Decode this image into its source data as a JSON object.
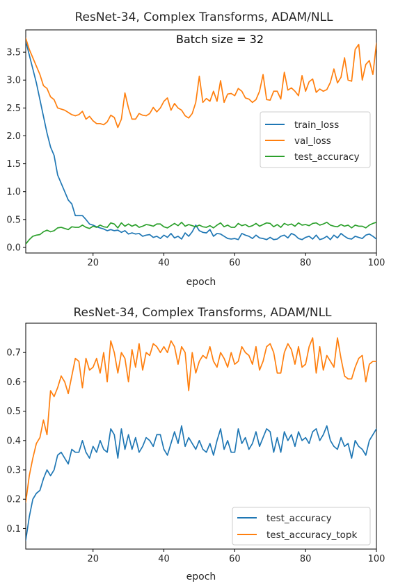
{
  "chart_data": [
    {
      "type": "line",
      "title": "ResNet-34, Complex Transforms, ADAM/NLL",
      "annotation": "Batch size = 32",
      "xlabel": "epoch",
      "ylabel": "",
      "xlim": [
        1,
        100
      ],
      "ylim": [
        -0.1,
        3.9
      ],
      "xticks": [
        20,
        40,
        60,
        80,
        100
      ],
      "yticks": [
        0.0,
        0.5,
        1.0,
        1.5,
        2.0,
        2.5,
        3.0,
        3.5
      ],
      "ytick_labels": [
        "0.0",
        "0.5",
        "1.0",
        "1.5",
        "2.0",
        "2.5",
        "3.0",
        "3.5"
      ],
      "grid": false,
      "legend_position": "center-right",
      "series": [
        {
          "name": "train_loss",
          "color": "#1f77b4",
          "values": [
            3.7,
            3.45,
            3.2,
            2.95,
            2.65,
            2.35,
            2.05,
            1.8,
            1.65,
            1.3,
            1.15,
            1.0,
            0.85,
            0.78,
            0.57,
            0.57,
            0.57,
            0.5,
            0.42,
            0.4,
            0.37,
            0.35,
            0.33,
            0.3,
            0.32,
            0.3,
            0.31,
            0.27,
            0.3,
            0.24,
            0.26,
            0.24,
            0.25,
            0.2,
            0.22,
            0.23,
            0.18,
            0.2,
            0.16,
            0.22,
            0.18,
            0.25,
            0.17,
            0.2,
            0.15,
            0.26,
            0.2,
            0.28,
            0.4,
            0.3,
            0.27,
            0.26,
            0.32,
            0.2,
            0.25,
            0.24,
            0.2,
            0.16,
            0.15,
            0.16,
            0.14,
            0.25,
            0.22,
            0.2,
            0.16,
            0.22,
            0.17,
            0.16,
            0.14,
            0.18,
            0.14,
            0.15,
            0.2,
            0.22,
            0.17,
            0.25,
            0.22,
            0.16,
            0.14,
            0.18,
            0.2,
            0.15,
            0.22,
            0.14,
            0.16,
            0.2,
            0.14,
            0.22,
            0.17,
            0.25,
            0.2,
            0.16,
            0.15,
            0.2,
            0.18,
            0.16,
            0.22,
            0.24,
            0.2,
            0.15
          ]
        },
        {
          "name": "val_loss",
          "color": "#ff7f0e",
          "values": [
            3.75,
            3.55,
            3.4,
            3.25,
            3.1,
            2.9,
            2.85,
            2.7,
            2.65,
            2.5,
            2.48,
            2.46,
            2.42,
            2.38,
            2.36,
            2.38,
            2.44,
            2.3,
            2.35,
            2.27,
            2.22,
            2.22,
            2.2,
            2.25,
            2.37,
            2.33,
            2.15,
            2.3,
            2.77,
            2.5,
            2.3,
            2.3,
            2.4,
            2.37,
            2.36,
            2.4,
            2.51,
            2.43,
            2.5,
            2.62,
            2.68,
            2.46,
            2.58,
            2.5,
            2.46,
            2.36,
            2.32,
            2.4,
            2.6,
            3.07,
            2.6,
            2.67,
            2.62,
            2.8,
            2.62,
            2.99,
            2.6,
            2.75,
            2.76,
            2.72,
            2.85,
            2.8,
            2.68,
            2.66,
            2.6,
            2.65,
            2.8,
            3.1,
            2.65,
            2.64,
            2.8,
            2.8,
            2.66,
            3.14,
            2.82,
            2.86,
            2.8,
            2.72,
            3.08,
            2.8,
            2.97,
            3.02,
            2.78,
            2.84,
            2.8,
            2.83,
            2.96,
            3.2,
            2.95,
            3.05,
            3.4,
            3.0,
            2.98,
            3.55,
            3.64,
            3.0,
            3.28,
            3.35,
            3.1,
            3.66
          ]
        },
        {
          "name": "test_accuracy",
          "color": "#2ca02c",
          "values": [
            0.06,
            0.14,
            0.2,
            0.22,
            0.23,
            0.28,
            0.31,
            0.28,
            0.3,
            0.35,
            0.36,
            0.34,
            0.32,
            0.37,
            0.36,
            0.36,
            0.4,
            0.36,
            0.34,
            0.38,
            0.36,
            0.4,
            0.37,
            0.36,
            0.44,
            0.42,
            0.35,
            0.44,
            0.38,
            0.42,
            0.38,
            0.41,
            0.36,
            0.38,
            0.41,
            0.4,
            0.38,
            0.42,
            0.42,
            0.37,
            0.35,
            0.39,
            0.43,
            0.39,
            0.45,
            0.38,
            0.41,
            0.39,
            0.37,
            0.4,
            0.37,
            0.36,
            0.39,
            0.35,
            0.4,
            0.44,
            0.37,
            0.4,
            0.36,
            0.36,
            0.43,
            0.39,
            0.41,
            0.37,
            0.39,
            0.43,
            0.38,
            0.41,
            0.44,
            0.43,
            0.37,
            0.41,
            0.36,
            0.43,
            0.4,
            0.42,
            0.38,
            0.44,
            0.4,
            0.41,
            0.39,
            0.43,
            0.44,
            0.4,
            0.42,
            0.45,
            0.4,
            0.38,
            0.37,
            0.41,
            0.38,
            0.4,
            0.35,
            0.4,
            0.38,
            0.38,
            0.35,
            0.4,
            0.43,
            0.45
          ]
        }
      ]
    },
    {
      "type": "line",
      "title": "ResNet-34, Complex Transforms, ADAM/NLL",
      "xlabel": "epoch",
      "ylabel": "",
      "xlim": [
        1,
        100
      ],
      "ylim": [
        0.03,
        0.8
      ],
      "xticks": [
        20,
        40,
        60,
        80,
        100
      ],
      "yticks": [
        0.1,
        0.2,
        0.3,
        0.4,
        0.5,
        0.6,
        0.7
      ],
      "ytick_labels": [
        "0.1",
        "0.2",
        "0.3",
        "0.4",
        "0.5",
        "0.6",
        "0.7"
      ],
      "grid": false,
      "legend_position": "lower-right",
      "series": [
        {
          "name": "test_accuracy",
          "color": "#1f77b4",
          "values": [
            0.06,
            0.14,
            0.2,
            0.22,
            0.23,
            0.27,
            0.3,
            0.28,
            0.3,
            0.35,
            0.36,
            0.34,
            0.32,
            0.37,
            0.36,
            0.36,
            0.4,
            0.36,
            0.34,
            0.38,
            0.36,
            0.4,
            0.37,
            0.36,
            0.44,
            0.42,
            0.34,
            0.44,
            0.37,
            0.42,
            0.37,
            0.41,
            0.36,
            0.38,
            0.41,
            0.4,
            0.38,
            0.42,
            0.42,
            0.37,
            0.35,
            0.39,
            0.43,
            0.39,
            0.45,
            0.38,
            0.41,
            0.39,
            0.37,
            0.4,
            0.37,
            0.36,
            0.39,
            0.35,
            0.4,
            0.44,
            0.37,
            0.4,
            0.36,
            0.36,
            0.44,
            0.39,
            0.41,
            0.37,
            0.39,
            0.43,
            0.38,
            0.41,
            0.44,
            0.43,
            0.36,
            0.41,
            0.36,
            0.43,
            0.4,
            0.42,
            0.38,
            0.43,
            0.4,
            0.41,
            0.39,
            0.43,
            0.44,
            0.4,
            0.42,
            0.45,
            0.4,
            0.38,
            0.37,
            0.41,
            0.38,
            0.39,
            0.34,
            0.4,
            0.38,
            0.37,
            0.35,
            0.4,
            0.42,
            0.44
          ]
        },
        {
          "name": "test_accuracy_topk",
          "color": "#ff7f0e",
          "values": [
            0.19,
            0.28,
            0.34,
            0.39,
            0.41,
            0.47,
            0.42,
            0.57,
            0.55,
            0.58,
            0.62,
            0.6,
            0.56,
            0.62,
            0.68,
            0.67,
            0.58,
            0.68,
            0.64,
            0.65,
            0.68,
            0.63,
            0.7,
            0.6,
            0.74,
            0.7,
            0.63,
            0.7,
            0.68,
            0.6,
            0.71,
            0.65,
            0.73,
            0.64,
            0.7,
            0.69,
            0.73,
            0.72,
            0.7,
            0.72,
            0.7,
            0.74,
            0.72,
            0.66,
            0.72,
            0.7,
            0.57,
            0.7,
            0.63,
            0.67,
            0.69,
            0.68,
            0.72,
            0.67,
            0.65,
            0.7,
            0.68,
            0.65,
            0.7,
            0.66,
            0.67,
            0.72,
            0.7,
            0.69,
            0.66,
            0.72,
            0.64,
            0.67,
            0.72,
            0.73,
            0.7,
            0.63,
            0.63,
            0.7,
            0.73,
            0.71,
            0.66,
            0.72,
            0.65,
            0.66,
            0.72,
            0.75,
            0.63,
            0.72,
            0.64,
            0.69,
            0.67,
            0.65,
            0.75,
            0.68,
            0.62,
            0.61,
            0.61,
            0.65,
            0.68,
            0.69,
            0.6,
            0.66,
            0.67,
            0.67
          ]
        }
      ]
    }
  ]
}
